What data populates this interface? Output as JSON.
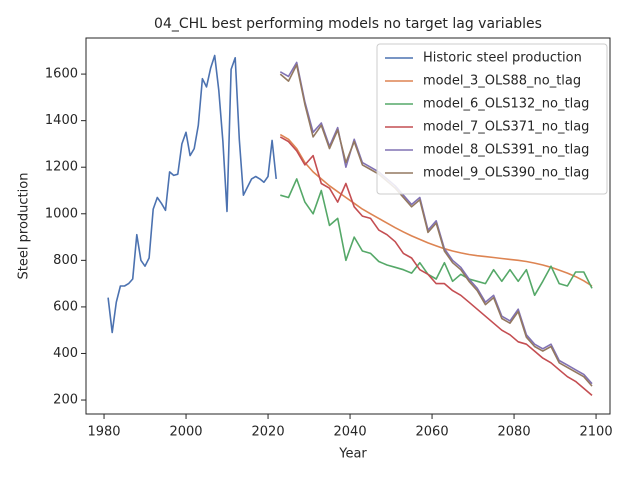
{
  "chart_data": {
    "type": "line",
    "title": "04_CHL best performing models no target lag variables",
    "x_label": "Year",
    "y_label": "Steel production",
    "xlim": [
      1975.6,
      2103.4
    ],
    "ylim": [
      140,
      1755
    ],
    "xticks": [
      1980,
      2000,
      2020,
      2040,
      2060,
      2080,
      2100
    ],
    "yticks": [
      200,
      400,
      600,
      800,
      1000,
      1200,
      1400,
      1600
    ],
    "grid": false,
    "legend": "upper right",
    "series": [
      {
        "name": "Historic steel production",
        "color": "#4c72b0",
        "x": [
          1981,
          1982,
          1983,
          1984,
          1985,
          1986,
          1987,
          1988,
          1989,
          1990,
          1991,
          1992,
          1993,
          1994,
          1995,
          1996,
          1997,
          1998,
          1999,
          2000,
          2001,
          2002,
          2003,
          2004,
          2005,
          2006,
          2007,
          2008,
          2009,
          2010,
          2011,
          2012,
          2013,
          2014,
          2015,
          2016,
          2017,
          2018,
          2019,
          2020,
          2021,
          2022
        ],
        "values": [
          640,
          490,
          620,
          690,
          690,
          700,
          720,
          910,
          800,
          775,
          810,
          1020,
          1070,
          1045,
          1015,
          1180,
          1165,
          1170,
          1300,
          1350,
          1250,
          1280,
          1380,
          1580,
          1545,
          1625,
          1680,
          1530,
          1310,
          1010,
          1620,
          1670,
          1320,
          1080,
          1115,
          1150,
          1160,
          1150,
          1135,
          1160,
          1315,
          1150
        ]
      },
      {
        "name": "model_3_OLS88_no_tlag",
        "color": "#dd8452",
        "x": [
          2023,
          2025,
          2027,
          2029,
          2031,
          2033,
          2035,
          2037,
          2039,
          2041,
          2043,
          2045,
          2047,
          2049,
          2051,
          2053,
          2055,
          2057,
          2059,
          2061,
          2063,
          2065,
          2067,
          2069,
          2071,
          2073,
          2075,
          2077,
          2079,
          2081,
          2083,
          2085,
          2087,
          2089,
          2091,
          2093,
          2095,
          2097,
          2099
        ],
        "values": [
          1340,
          1320,
          1280,
          1220,
          1180,
          1150,
          1120,
          1095,
          1070,
          1045,
          1020,
          1000,
          980,
          960,
          940,
          922,
          905,
          890,
          875,
          862,
          850,
          840,
          832,
          825,
          820,
          816,
          812,
          808,
          804,
          800,
          795,
          788,
          780,
          770,
          758,
          745,
          730,
          712,
          690
        ]
      },
      {
        "name": "model_6_OLS132_no_tlag",
        "color": "#55a868",
        "x": [
          2023,
          2025,
          2027,
          2029,
          2031,
          2033,
          2035,
          2037,
          2039,
          2041,
          2043,
          2045,
          2047,
          2049,
          2051,
          2053,
          2055,
          2057,
          2059,
          2061,
          2063,
          2065,
          2067,
          2069,
          2071,
          2073,
          2075,
          2077,
          2079,
          2081,
          2083,
          2085,
          2087,
          2089,
          2091,
          2093,
          2095,
          2097,
          2099
        ],
        "values": [
          1080,
          1070,
          1150,
          1050,
          1000,
          1100,
          950,
          980,
          800,
          900,
          840,
          830,
          795,
          780,
          770,
          760,
          745,
          790,
          740,
          720,
          790,
          710,
          740,
          720,
          710,
          700,
          760,
          710,
          760,
          710,
          760,
          650,
          710,
          775,
          700,
          690,
          750,
          750,
          680
        ]
      },
      {
        "name": "model_7_OLS371_no_tlag",
        "color": "#c44e52",
        "x": [
          2023,
          2025,
          2027,
          2029,
          2031,
          2033,
          2035,
          2037,
          2039,
          2041,
          2043,
          2045,
          2047,
          2049,
          2051,
          2053,
          2055,
          2057,
          2059,
          2061,
          2063,
          2065,
          2067,
          2069,
          2071,
          2073,
          2075,
          2077,
          2079,
          2081,
          2083,
          2085,
          2087,
          2089,
          2091,
          2093,
          2095,
          2097,
          2099
        ],
        "values": [
          1330,
          1310,
          1270,
          1210,
          1250,
          1130,
          1110,
          1050,
          1130,
          1030,
          990,
          980,
          930,
          910,
          880,
          830,
          810,
          760,
          740,
          700,
          700,
          670,
          650,
          620,
          590,
          560,
          530,
          500,
          480,
          450,
          440,
          410,
          380,
          360,
          330,
          300,
          280,
          250,
          220
        ]
      },
      {
        "name": "model_8_OLS391_no_tlag",
        "color": "#8172b3",
        "x": [
          2023,
          2025,
          2027,
          2029,
          2031,
          2033,
          2035,
          2037,
          2039,
          2041,
          2043,
          2045,
          2047,
          2049,
          2051,
          2053,
          2055,
          2057,
          2059,
          2061,
          2063,
          2065,
          2067,
          2069,
          2071,
          2073,
          2075,
          2077,
          2079,
          2081,
          2083,
          2085,
          2087,
          2089,
          2091,
          2093,
          2095,
          2097,
          2099
        ],
        "values": [
          1610,
          1590,
          1650,
          1480,
          1350,
          1390,
          1290,
          1370,
          1200,
          1320,
          1220,
          1200,
          1180,
          1150,
          1120,
          1080,
          1040,
          1070,
          930,
          970,
          850,
          800,
          770,
          720,
          680,
          620,
          650,
          560,
          540,
          590,
          480,
          440,
          420,
          440,
          370,
          350,
          330,
          310,
          270
        ]
      },
      {
        "name": "model_9_OLS390_no_tlag",
        "color": "#937860",
        "x": [
          2023,
          2025,
          2027,
          2029,
          2031,
          2033,
          2035,
          2037,
          2039,
          2041,
          2043,
          2045,
          2047,
          2049,
          2051,
          2053,
          2055,
          2057,
          2059,
          2061,
          2063,
          2065,
          2067,
          2069,
          2071,
          2073,
          2075,
          2077,
          2079,
          2081,
          2083,
          2085,
          2087,
          2089,
          2091,
          2093,
          2095,
          2097,
          2099
        ],
        "values": [
          1600,
          1570,
          1640,
          1470,
          1330,
          1380,
          1280,
          1360,
          1220,
          1310,
          1210,
          1190,
          1170,
          1140,
          1110,
          1070,
          1030,
          1060,
          920,
          960,
          840,
          790,
          760,
          710,
          670,
          610,
          640,
          550,
          530,
          580,
          470,
          430,
          410,
          430,
          360,
          340,
          320,
          300,
          260
        ]
      }
    ]
  }
}
